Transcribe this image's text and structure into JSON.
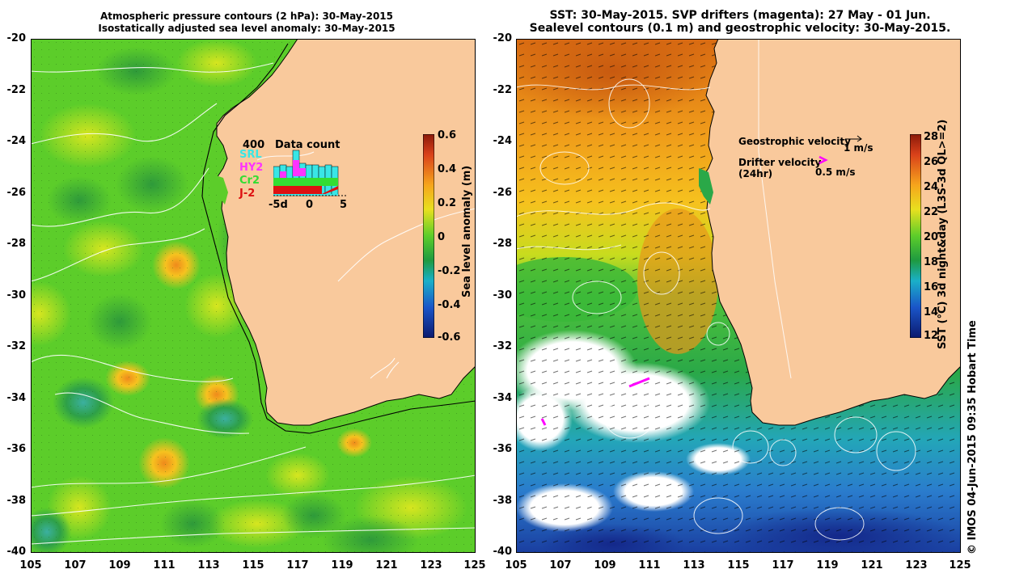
{
  "left_panel": {
    "title_line1": "Atmospheric pressure contours (2 hPa): 30-May-2015",
    "title_line2": "Isostatically adjusted sea level anomaly: 30-May-2015",
    "colorbar_label": "Sea level anomaly (m)",
    "colorbar_ticks": [
      "0.6",
      "0.4",
      "0.2",
      "0",
      "-0.2",
      "-0.4",
      "-0.6"
    ],
    "inset": {
      "title": "Data count",
      "ymax_label": "400",
      "x_labels": [
        "-5d",
        "0",
        "5"
      ],
      "series": [
        {
          "name": "SRL",
          "color": "#39e6e6"
        },
        {
          "name": "HY2",
          "color": "#ff33ff"
        },
        {
          "name": "Cr2",
          "color": "#33dd33"
        },
        {
          "name": "J-2",
          "color": "#dd1111"
        }
      ]
    }
  },
  "right_panel": {
    "title_line1": "SST: 30-May-2015. SVP drifters (magenta): 27 May - 01 Jun.",
    "title_line2": "Sealevel contours (0.1 m) and geostrophic velocity: 30-May-2015.",
    "colorbar_label": "SST (°C) 3d night&day (L3S-3d QL>=2)",
    "colorbar_ticks": [
      "28",
      "26",
      "24",
      "22",
      "20",
      "18",
      "16",
      "14",
      "12"
    ],
    "legend": {
      "geostrophic_label": "Geostrophic velocity",
      "geostrophic_scale": "1 m/s",
      "drifter_label_line1": "Drifter velocity",
      "drifter_label_line2": "(24hr)",
      "drifter_scale": "0.5 m/s",
      "drifter_color": "#ff00ff"
    }
  },
  "axes": {
    "y_ticks": [
      "-20",
      "-22",
      "-24",
      "-26",
      "-28",
      "-30",
      "-32",
      "-34",
      "-36",
      "-38",
      "-40"
    ],
    "x_ticks": [
      "105",
      "107",
      "109",
      "111",
      "113",
      "115",
      "117",
      "119",
      "121",
      "123",
      "125"
    ]
  },
  "footer": "© IMOS 04-Jun-2015 09:35 Hobart Time",
  "colors": {
    "land": "#f9c99c",
    "sla_mid": "#5ccd2a",
    "sst_warm": "#e0821b"
  }
}
